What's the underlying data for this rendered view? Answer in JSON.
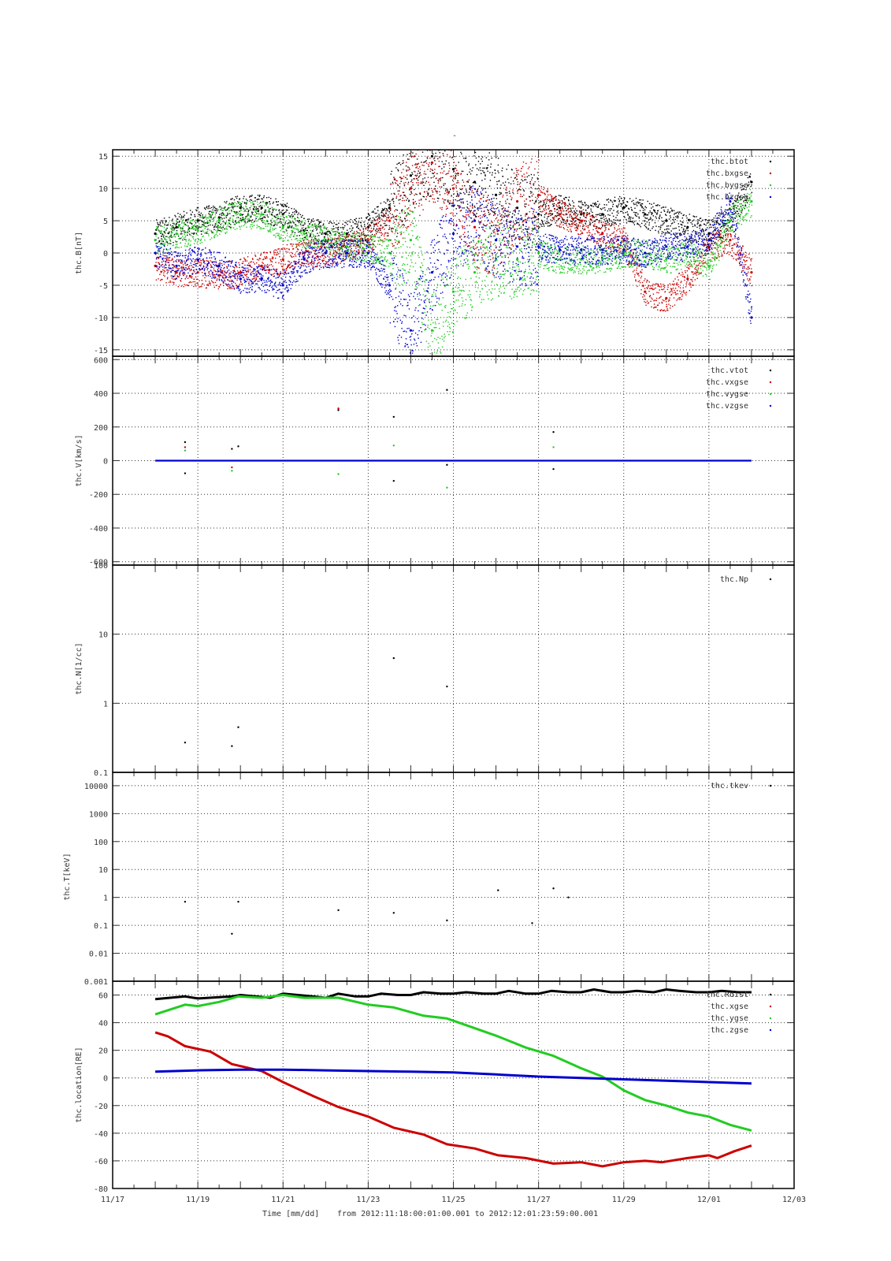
{
  "figure": {
    "title": "-",
    "xlabel_time": "Time [mm/dd]",
    "xlabel_range": "from 2012:11:18:00:01:00.001  to  2012:12:01:23:59:00.001"
  },
  "colors": {
    "black": "#000000",
    "red": "#cc0000",
    "green": "#22cc22",
    "blue": "#0000cc",
    "grid": "#333333",
    "text": "#333333"
  },
  "x_axis": {
    "range_days": [
      17,
      33
    ],
    "tick_labels": [
      "11/17",
      "11/19",
      "11/21",
      "11/23",
      "11/25",
      "11/27",
      "11/29",
      "12/01",
      "12/03"
    ],
    "tick_days": [
      17,
      19,
      21,
      23,
      25,
      27,
      29,
      31,
      33
    ]
  },
  "chart_data": [
    {
      "type": "scatter",
      "ylabel": "thc.B[nT]",
      "ylim": [
        -16,
        16
      ],
      "scale": "linear",
      "yticks": [
        -15,
        -10,
        -5,
        0,
        5,
        10,
        15
      ],
      "ytick_labels": [
        "-15",
        "-10",
        "-5",
        "0",
        "5",
        "10",
        "15"
      ],
      "legend": [
        "thc.btot",
        "thc.bxgse",
        "thc.bygse",
        "thc.bzgse"
      ],
      "series": [
        {
          "name": "thc.btot",
          "color": "black",
          "x": [
            18.0,
            18.5,
            19.0,
            19.5,
            20.0,
            20.5,
            21.0,
            21.5,
            22.0,
            22.5,
            23.0,
            23.5,
            24.0,
            24.5,
            25.0,
            25.5,
            26.0,
            26.5,
            27.0,
            27.5,
            28.0,
            28.5,
            29.0,
            29.5,
            30.0,
            30.5,
            31.0,
            31.5,
            32.0
          ],
          "y": [
            3,
            4,
            5,
            5.5,
            7,
            7,
            6,
            3.5,
            3,
            3,
            4,
            7,
            12,
            15,
            13,
            11,
            9,
            7,
            6,
            7,
            6,
            6,
            7,
            6,
            5,
            4,
            3,
            5,
            11
          ]
        },
        {
          "name": "thc.bxgse",
          "color": "red",
          "x": [
            18.0,
            18.5,
            19.0,
            19.5,
            20.0,
            20.5,
            21.0,
            21.5,
            22.0,
            22.5,
            23.0,
            23.5,
            24.0,
            24.5,
            25.0,
            25.5,
            26.0,
            26.5,
            27.0,
            27.5,
            28.0,
            28.5,
            29.0,
            29.5,
            30.0,
            30.5,
            31.0,
            31.5,
            32.0
          ],
          "y": [
            -2,
            -3,
            -3,
            -3.5,
            -3,
            -2,
            -1,
            0,
            0,
            1,
            2,
            5,
            10,
            14,
            10,
            4,
            2,
            8,
            9,
            6,
            5,
            3,
            2,
            -6,
            -7,
            -4,
            1,
            2,
            -3
          ]
        },
        {
          "name": "thc.bygse",
          "color": "green",
          "x": [
            18.0,
            18.5,
            19.0,
            19.5,
            20.0,
            20.5,
            21.0,
            21.5,
            22.0,
            22.5,
            23.0,
            23.5,
            24.0,
            24.5,
            25.0,
            25.5,
            26.0,
            26.5,
            27.0,
            27.5,
            28.0,
            28.5,
            29.0,
            29.5,
            30.0,
            30.5,
            31.0,
            31.5,
            32.0
          ],
          "y": [
            2,
            3,
            3.5,
            5,
            6,
            6,
            4,
            3,
            2,
            1,
            1,
            0,
            2,
            -12,
            -6,
            -3,
            -1,
            -1,
            0,
            -1,
            -1,
            -1,
            0,
            0,
            -1,
            0,
            -2,
            5,
            8
          ]
        },
        {
          "name": "thc.bzgse",
          "color": "blue",
          "x": [
            18.0,
            18.5,
            19.0,
            19.5,
            20.0,
            20.5,
            21.0,
            21.5,
            22.0,
            22.5,
            23.0,
            23.5,
            24.0,
            24.5,
            25.0,
            25.5,
            26.0,
            26.5,
            27.0,
            27.5,
            28.0,
            28.5,
            29.0,
            29.5,
            30.0,
            30.5,
            31.0,
            31.5,
            32.0
          ],
          "y": [
            0,
            -2,
            -1,
            -2,
            -4,
            -4,
            -5,
            -1,
            0,
            0,
            0,
            -5,
            -12,
            -3,
            3,
            5,
            2,
            1,
            1,
            0.5,
            0.5,
            0.5,
            0.5,
            0,
            1,
            1,
            2,
            8,
            -10
          ]
        }
      ]
    },
    {
      "type": "scatter",
      "ylabel": "thc.V[km/s]",
      "ylim": [
        -620,
        620
      ],
      "scale": "linear",
      "yticks": [
        -600,
        -400,
        -200,
        0,
        200,
        400,
        600
      ],
      "ytick_labels": [
        "-600",
        "-400",
        "-200",
        "0",
        "200",
        "400",
        "600"
      ],
      "legend": [
        "thc.vtot",
        "thc.vxgse",
        "thc.vygse",
        "thc.vzgse"
      ],
      "series": [
        {
          "name": "thc.vtot",
          "color": "black",
          "x": [
            18.7,
            18.7,
            19.8,
            19.95,
            22.3,
            23.6,
            23.6,
            24.85,
            24.85,
            27.35,
            27.35
          ],
          "y": [
            110,
            -75,
            70,
            85,
            300,
            260,
            -120,
            420,
            -25,
            170,
            -50
          ]
        },
        {
          "name": "thc.vxgse",
          "color": "red",
          "x": [
            18.7,
            19.8,
            22.3
          ],
          "y": [
            80,
            -40,
            310
          ]
        },
        {
          "name": "thc.vygse",
          "color": "green",
          "x": [
            18.7,
            19.8,
            22.3,
            23.6,
            24.85,
            27.35
          ],
          "y": [
            60,
            -60,
            -80,
            90,
            -160,
            80
          ]
        },
        {
          "name": "thc.vzgse",
          "color": "blue",
          "x": [
            18.0,
            32.0
          ],
          "y": [
            0,
            0
          ]
        }
      ]
    },
    {
      "type": "scatter",
      "ylabel": "thc.N[1/cc]",
      "ylim": [
        0.1,
        100
      ],
      "scale": "log",
      "yticks": [
        0.1,
        1,
        10,
        100
      ],
      "ytick_labels": [
        "0.1",
        "1",
        "10",
        "100"
      ],
      "legend": [
        "thc.Np"
      ],
      "series": [
        {
          "name": "thc.Np",
          "color": "black",
          "x": [
            18.7,
            19.8,
            19.95,
            23.6,
            24.85
          ],
          "y": [
            0.27,
            0.24,
            0.45,
            4.5,
            1.75
          ]
        }
      ]
    },
    {
      "type": "scatter",
      "ylabel": "thc.T[keV]",
      "ylim": [
        0.001,
        30000
      ],
      "scale": "log",
      "yticks": [
        0.001,
        0.01,
        0.1,
        1,
        10,
        100,
        1000,
        10000
      ],
      "ytick_labels": [
        "0.001",
        "0.01",
        "0.1",
        "1",
        "10",
        "100",
        "1000",
        "10000"
      ],
      "legend": [
        "thc.tkev"
      ],
      "series": [
        {
          "name": "thc.tkev",
          "color": "black",
          "x": [
            18.7,
            19.8,
            19.95,
            22.3,
            23.6,
            24.85,
            26.05,
            26.85,
            27.35,
            27.7
          ],
          "y": [
            0.7,
            0.05,
            0.7,
            0.35,
            0.28,
            0.15,
            1.8,
            0.12,
            2.1,
            1.0
          ]
        }
      ]
    },
    {
      "type": "line",
      "ylabel": "thc.location[RE]",
      "ylim": [
        -80,
        70
      ],
      "scale": "linear",
      "yticks": [
        -80,
        -60,
        -40,
        -20,
        0,
        20,
        40,
        60
      ],
      "ytick_labels": [
        "-80",
        "-60",
        "-40",
        "-20",
        "0",
        "20",
        "40",
        "60"
      ],
      "legend": [
        "thc.Rdist",
        "thc.xgse",
        "thc.ygse",
        "thc.zgse"
      ],
      "series": [
        {
          "name": "thc.Rdist",
          "color": "black",
          "x": [
            18.0,
            18.7,
            19.0,
            19.8,
            20.0,
            20.7,
            21.0,
            21.7,
            22.0,
            22.3,
            22.7,
            23.0,
            23.3,
            23.7,
            24.0,
            24.3,
            24.7,
            25.0,
            25.3,
            25.7,
            26.0,
            26.3,
            26.7,
            27.0,
            27.3,
            27.7,
            28.0,
            28.3,
            28.7,
            29.0,
            29.3,
            29.7,
            30.0,
            30.3,
            30.7,
            31.0,
            31.3,
            31.7,
            32.0
          ],
          "y": [
            57,
            59,
            57.5,
            59,
            60,
            58,
            61,
            59,
            58,
            61,
            59,
            59,
            61,
            60,
            60,
            62,
            61,
            61,
            62,
            61,
            61,
            63,
            61,
            61,
            63,
            62,
            62,
            64,
            62,
            62,
            63,
            62,
            64,
            63,
            62,
            62,
            63,
            62,
            62
          ]
        },
        {
          "name": "thc.xgse",
          "color": "red",
          "x": [
            18.0,
            18.3,
            18.7,
            19.3,
            19.8,
            20.5,
            21.0,
            21.7,
            22.3,
            23.0,
            23.6,
            24.3,
            24.85,
            25.5,
            26.05,
            26.7,
            27.35,
            28.0,
            28.5,
            29.0,
            29.5,
            29.9,
            30.5,
            31.0,
            31.2,
            31.6,
            32.0
          ],
          "y": [
            33,
            30,
            23,
            19,
            10,
            5,
            -3,
            -13,
            -21,
            -28,
            -36,
            -41,
            -48,
            -51,
            -56,
            -58,
            -62,
            -61,
            -64,
            -61,
            -60,
            -61,
            -58,
            -56,
            -58,
            -53,
            -49
          ]
        },
        {
          "name": "thc.ygse",
          "color": "green",
          "x": [
            18.0,
            18.7,
            19.0,
            19.5,
            19.95,
            20.5,
            21.0,
            21.5,
            22.3,
            23.0,
            23.6,
            24.3,
            24.85,
            25.5,
            26.05,
            26.7,
            27.35,
            28.0,
            28.5,
            29.0,
            29.5,
            30.0,
            30.5,
            31.0,
            31.5,
            32.0
          ],
          "y": [
            46,
            53,
            52,
            55,
            59,
            58,
            60,
            58,
            58,
            53,
            51,
            45,
            43,
            36,
            30,
            22,
            16,
            7,
            1,
            -9,
            -16,
            -20,
            -25,
            -28,
            -34,
            -38
          ]
        },
        {
          "name": "thc.zgse",
          "color": "blue",
          "x": [
            18.0,
            19.0,
            20.0,
            21.0,
            22.0,
            23.0,
            24.0,
            25.0,
            26.0,
            27.0,
            28.0,
            29.0,
            30.0,
            31.0,
            32.0
          ],
          "y": [
            4.5,
            5.5,
            6,
            6,
            5.5,
            5,
            4.5,
            4,
            2.5,
            1,
            0,
            -1,
            -2,
            -3,
            -4
          ]
        }
      ]
    }
  ]
}
